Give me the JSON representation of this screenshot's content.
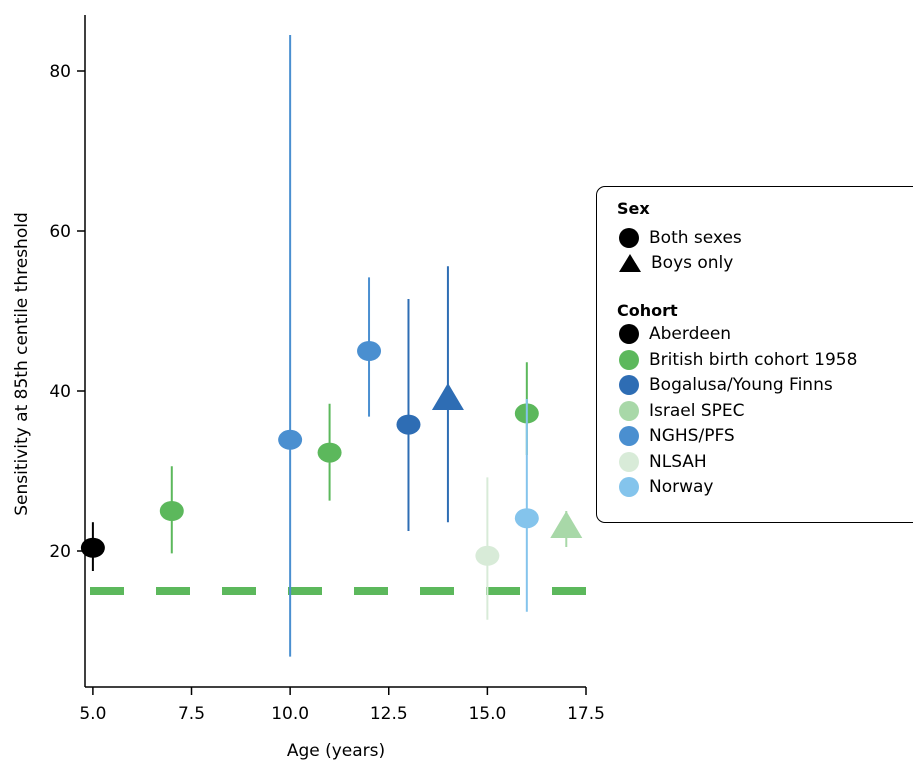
{
  "chart_data": {
    "type": "scatter",
    "xlabel": "Age (years)",
    "ylabel": "Sensitivity at 85th centile threshold",
    "xlim": [
      4.8,
      17.5
    ],
    "ylim": [
      3,
      87
    ],
    "xticks": [
      5.0,
      7.5,
      10.0,
      12.5,
      15.0,
      17.5
    ],
    "xtick_labels": [
      "5.0",
      "7.5",
      "10.0",
      "12.5",
      "15.0",
      "17.5"
    ],
    "yticks": [
      20,
      40,
      60,
      80
    ],
    "ytick_labels": [
      "20",
      "40",
      "60",
      "80"
    ],
    "reference_line": {
      "y": 15,
      "style": "dashed",
      "color": "#5cb85c"
    },
    "points": [
      {
        "cohort": "Aberdeen",
        "sex": "Both sexes",
        "x": 5,
        "y": 20.4,
        "lo": 17.5,
        "hi": 23.6
      },
      {
        "cohort": "British birth cohort 1958",
        "sex": "Both sexes",
        "x": 7,
        "y": 25.0,
        "lo": 19.7,
        "hi": 30.6
      },
      {
        "cohort": "NGHS/PFS",
        "sex": "Both sexes",
        "x": 10,
        "y": 33.9,
        "lo": 6.8,
        "hi": 84.5
      },
      {
        "cohort": "British birth cohort 1958",
        "sex": "Both sexes",
        "x": 11,
        "y": 32.3,
        "lo": 26.3,
        "hi": 38.4
      },
      {
        "cohort": "NGHS/PFS",
        "sex": "Both sexes",
        "x": 12,
        "y": 45.0,
        "lo": 36.8,
        "hi": 54.2
      },
      {
        "cohort": "Bogalusa/Young Finns",
        "sex": "Both sexes",
        "x": 13,
        "y": 35.8,
        "lo": 22.5,
        "hi": 51.5
      },
      {
        "cohort": "Bogalusa/Young Finns",
        "sex": "Boys only",
        "x": 14,
        "y": 39.0,
        "lo": 23.6,
        "hi": 55.6
      },
      {
        "cohort": "NLSAH",
        "sex": "Both sexes",
        "x": 15,
        "y": 19.4,
        "lo": 11.4,
        "hi": 29.2
      },
      {
        "cohort": "British birth cohort 1958",
        "sex": "Both sexes",
        "x": 16,
        "y": 37.2,
        "lo": 32.0,
        "hi": 43.6
      },
      {
        "cohort": "Norway",
        "sex": "Both sexes",
        "x": 16,
        "y": 24.1,
        "lo": 12.4,
        "hi": 39.0
      },
      {
        "cohort": "Israel SPEC",
        "sex": "Boys only",
        "x": 17,
        "y": 23.0,
        "lo": 20.5,
        "hi": 25.0
      }
    ],
    "legend": {
      "placement": "right",
      "sex_title": "Sex",
      "sex_items": [
        {
          "label": "Both sexes",
          "shape": "circle"
        },
        {
          "label": "Boys only",
          "shape": "triangle"
        }
      ],
      "cohort_title": "Cohort",
      "cohort_items": [
        {
          "label": "Aberdeen",
          "color": "#000000"
        },
        {
          "label": "British birth cohort 1958",
          "color": "#5cb85c"
        },
        {
          "label": "Bogalusa/Young Finns",
          "color": "#2e6db4"
        },
        {
          "label": "Israel SPEC",
          "color": "#a8d8a8"
        },
        {
          "label": "NGHS/PFS",
          "color": "#4a8fd0"
        },
        {
          "label": "NLSAH",
          "color": "#d8ebd8"
        },
        {
          "label": "Norway",
          "color": "#84c4ec"
        }
      ]
    }
  }
}
